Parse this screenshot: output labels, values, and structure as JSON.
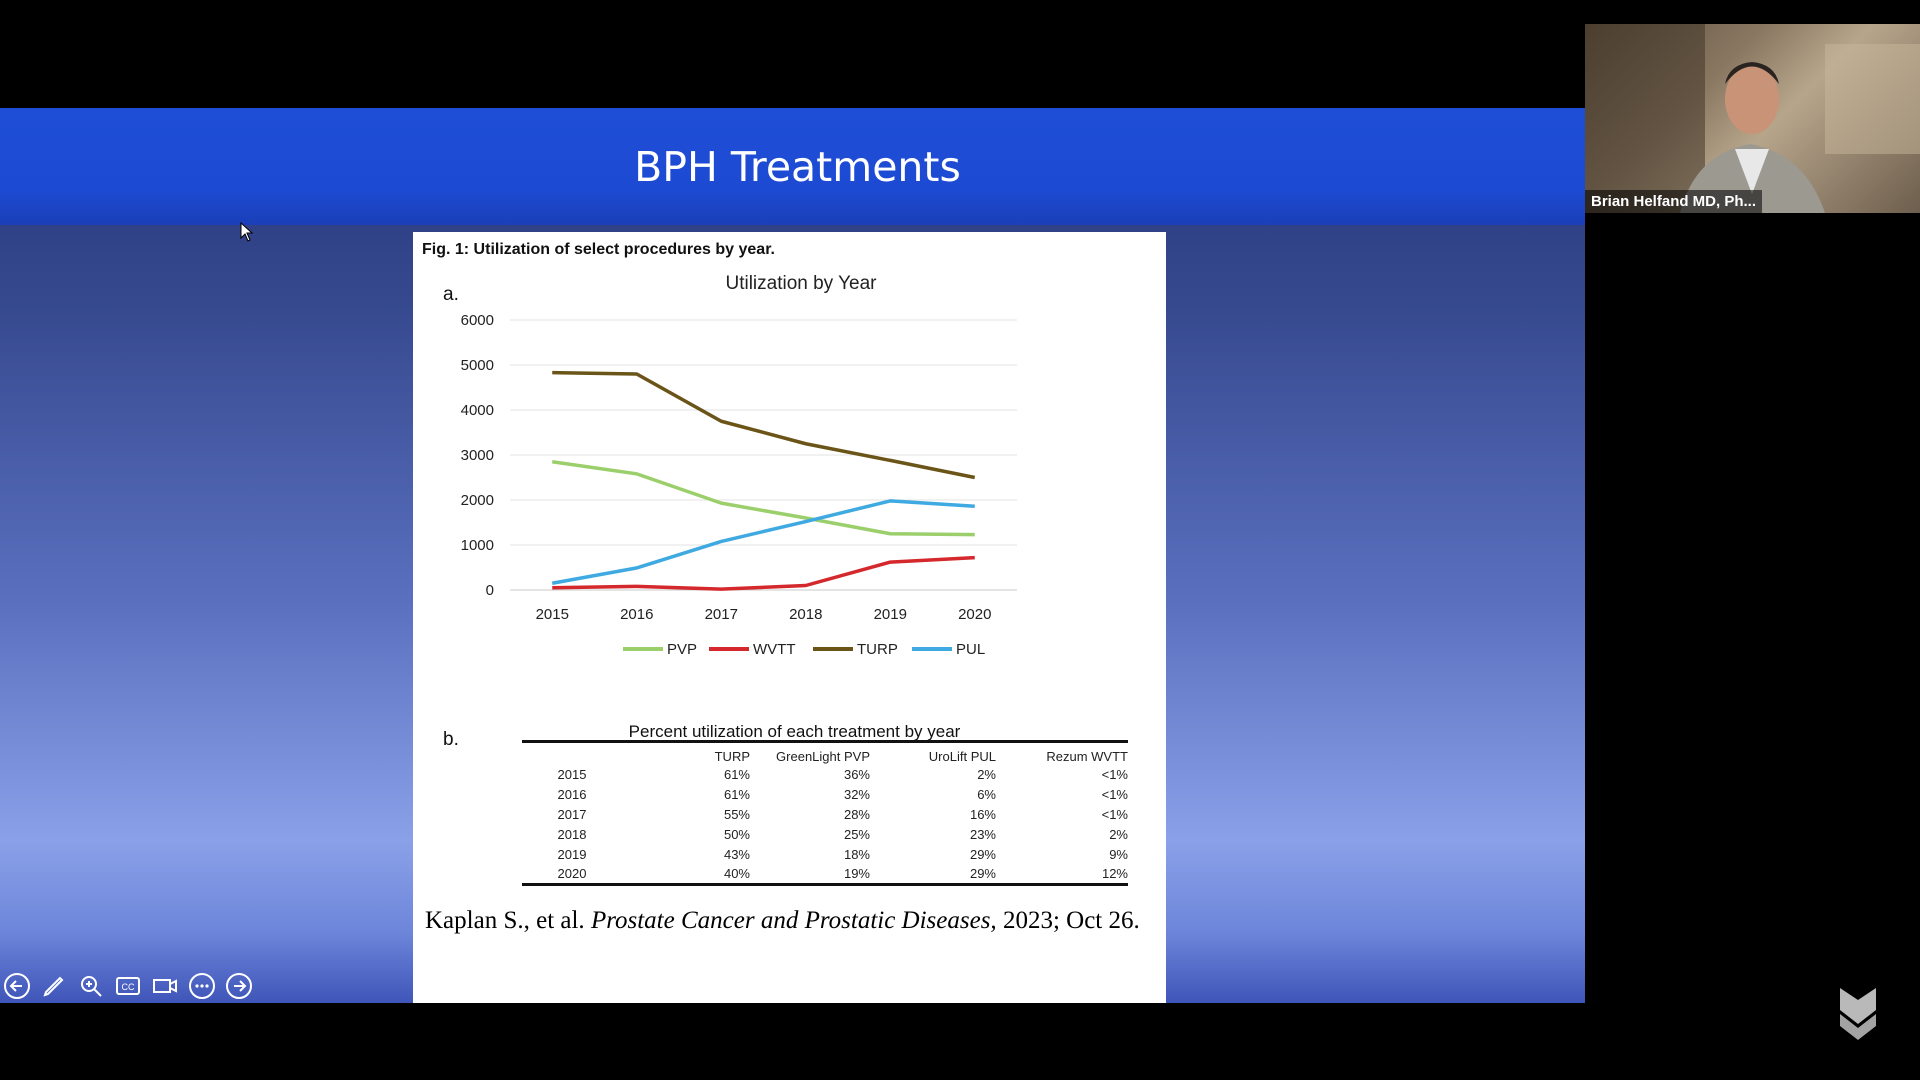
{
  "slide": {
    "title": "BPH Treatments",
    "figure_caption": "Fig. 1: Utilization of select procedures by year.",
    "label_a": "a.",
    "label_b": "b.",
    "citation_authors": "Kaplan S., et al.",
    "citation_journal": "Prostate Cancer and Prostatic Diseases,",
    "citation_date": "2023; Oct 26."
  },
  "chart_data": [
    {
      "type": "line",
      "title": "Utilization by Year",
      "x": [
        "2015",
        "2016",
        "2017",
        "2018",
        "2019",
        "2020"
      ],
      "ylim": [
        0,
        6000
      ],
      "yticks": [
        0,
        1000,
        2000,
        3000,
        4000,
        5000,
        6000
      ],
      "grid": true,
      "legend": "bottom",
      "series": [
        {
          "name": "PVP",
          "color": "#9bcf6b",
          "values": [
            2850,
            2580,
            1930,
            1600,
            1250,
            1230
          ]
        },
        {
          "name": "WVTT",
          "color": "#d4282c",
          "values": [
            50,
            80,
            20,
            100,
            620,
            720
          ]
        },
        {
          "name": "TURP",
          "color": "#6b5418",
          "values": [
            4830,
            4800,
            3750,
            3250,
            2880,
            2500
          ]
        },
        {
          "name": "PUL",
          "color": "#3fa9e1",
          "values": [
            150,
            490,
            1080,
            1520,
            1980,
            1860
          ]
        }
      ]
    },
    {
      "type": "table",
      "title": "Percent utilization of each treatment by year",
      "columns": [
        "",
        "TURP",
        "GreenLight PVP",
        "UroLift PUL",
        "Rezum WVTT"
      ],
      "rows": [
        [
          "2015",
          "61%",
          "36%",
          "2%",
          "<1%"
        ],
        [
          "2016",
          "61%",
          "32%",
          "6%",
          "<1%"
        ],
        [
          "2017",
          "55%",
          "28%",
          "16%",
          "<1%"
        ],
        [
          "2018",
          "50%",
          "25%",
          "23%",
          "2%"
        ],
        [
          "2019",
          "43%",
          "18%",
          "29%",
          "9%"
        ],
        [
          "2020",
          "40%",
          "19%",
          "29%",
          "12%"
        ]
      ]
    }
  ],
  "toolbar": [
    {
      "icon": "back-arrow-icon"
    },
    {
      "icon": "pen-icon"
    },
    {
      "icon": "zoom-icon"
    },
    {
      "icon": "cc-icon"
    },
    {
      "icon": "video-icon"
    },
    {
      "icon": "more-icon"
    },
    {
      "icon": "forward-arrow-icon"
    }
  ],
  "participant": {
    "name": "Brian Helfand MD, Ph..."
  }
}
